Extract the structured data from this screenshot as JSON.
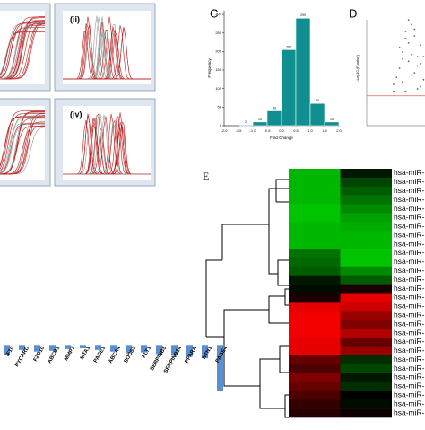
{
  "amplification_panels": {
    "labels": [
      "(ii)",
      "(iv)"
    ]
  },
  "chart_data": [
    {
      "type": "histogram",
      "panel_label": "C",
      "xlabel": "Fold Change",
      "ylabel": "Frequency",
      "bins": [
        -1.5,
        -1.0,
        -0.5,
        0,
        0.5,
        1.0,
        1.5,
        2.0
      ],
      "values": [
        2,
        10,
        40,
        205,
        290,
        60,
        10
      ],
      "color": "#0f8f8f",
      "xlim": [
        -2.0,
        2.0
      ],
      "xticks": [
        {
          "value": -2,
          "label": "-2.0"
        },
        {
          "value": -1.5,
          "label": "-1.5"
        },
        {
          "value": -1,
          "label": "-1.0"
        },
        {
          "value": -0.5,
          "label": "-0.5"
        },
        {
          "value": 0,
          "label": "0.0"
        },
        {
          "value": 0.5,
          "label": "0.5"
        },
        {
          "value": 1,
          "label": "1.0"
        },
        {
          "value": 1.5,
          "label": "1.5"
        },
        {
          "value": 2,
          "label": "2.0"
        }
      ],
      "ylim": [
        0,
        310
      ],
      "yticks": [
        0,
        50,
        100,
        150,
        200,
        250,
        300
      ]
    },
    {
      "type": "scatter",
      "panel_label": "D",
      "ylabel": "-Log10 (P-value)",
      "color": "#666666",
      "threshold_color": "#e06060",
      "xlim": [
        -1.5,
        1.5
      ],
      "ylim": [
        0,
        5
      ],
      "threshold": 1.3,
      "x": [
        -0.6,
        -0.4,
        -0.3,
        -0.2,
        -0.1,
        0.0,
        0.1,
        0.2,
        0.3,
        -0.5,
        -0.3,
        -0.1,
        0.1,
        0.3,
        0.4,
        -0.2,
        0.0,
        0.2,
        -0.4,
        0.5,
        -0.1,
        0.1,
        0.3,
        -0.3,
        0.0,
        0.2,
        0.4,
        -0.6,
        0.6,
        -0.2
      ],
      "y": [
        1.8,
        2.5,
        3.2,
        4.1,
        3.6,
        4.4,
        3.9,
        3.0,
        2.7,
        2.1,
        1.9,
        2.8,
        2.3,
        1.7,
        2.0,
        1.5,
        3.1,
        1.6,
        3.4,
        1.4,
        4.6,
        4.2,
        3.5,
        2.9,
        2.2,
        2.6,
        3.0,
        1.5,
        1.9,
        3.8
      ]
    },
    {
      "type": "bar",
      "categories": [
        "IF10",
        "PYCARD",
        "FZD10",
        "ABCB1",
        "MMP7",
        "MTA1",
        "PAGE1",
        "ABCA4",
        "SOCS2",
        "FLT1",
        "SERPINB5",
        "SERPINB14",
        "PPARA",
        "NTN1",
        "PAGE4"
      ],
      "values": [
        -1.2,
        -0.6,
        -0.8,
        -0.7,
        -0.5,
        -0.4,
        -0.6,
        -0.8,
        -1.0,
        -0.9,
        -1.1,
        -1.3,
        -1.4,
        -1.6,
        -5.5
      ],
      "color": "#5b8fd4",
      "ylim": [
        -6,
        1
      ]
    },
    {
      "type": "heatmap",
      "panel_label": "E",
      "rows": [
        "hsa-miR-",
        "hsa-miR-",
        "hsa-miR-",
        "hsa-miR-",
        "hsa-miR-",
        "hsa-miR-",
        "hsa-miR-",
        "hsa-miR-",
        "hsa-miR-",
        "hsa-miR-",
        "hsa-miR-",
        "hsa-miR-",
        "hsa-miR-",
        "hsa-miR-",
        "hsa-miR-",
        "hsa-miR-",
        "hsa-miR-",
        "hsa-miR-",
        "hsa-miR-",
        "hsa-miR-",
        "hsa-miR-",
        "hsa-miR-",
        "hsa-miR-",
        "hsa-miR-",
        "hsa-miR-",
        "hsa-miR-",
        "hsa-miR-",
        "hsa-miR-"
      ],
      "values": [
        [
          -0.8,
          -0.1
        ],
        [
          -0.8,
          -0.3
        ],
        [
          -0.8,
          -0.4
        ],
        [
          -0.8,
          -0.5
        ],
        [
          -0.85,
          -0.6
        ],
        [
          -0.85,
          -0.7
        ],
        [
          -0.8,
          -0.75
        ],
        [
          -0.8,
          -0.8
        ],
        [
          -0.8,
          -0.8
        ],
        [
          -0.5,
          -0.85
        ],
        [
          -0.45,
          -0.85
        ],
        [
          -0.4,
          -0.6
        ],
        [
          -0.1,
          -0.4
        ],
        [
          -0.05,
          0.1
        ],
        [
          0.1,
          0.9
        ],
        [
          0.9,
          0.8
        ],
        [
          0.95,
          0.6
        ],
        [
          0.95,
          0.5
        ],
        [
          0.95,
          0.7
        ],
        [
          0.9,
          0.4
        ],
        [
          0.9,
          0.6
        ],
        [
          0.4,
          -0.2
        ],
        [
          0.3,
          -0.3
        ],
        [
          0.5,
          -0.1
        ],
        [
          0.4,
          -0.2
        ],
        [
          0.3,
          0.0
        ],
        [
          0.2,
          -0.05
        ],
        [
          0.15,
          0.05
        ]
      ],
      "vlim": [
        -1,
        1
      ]
    }
  ]
}
